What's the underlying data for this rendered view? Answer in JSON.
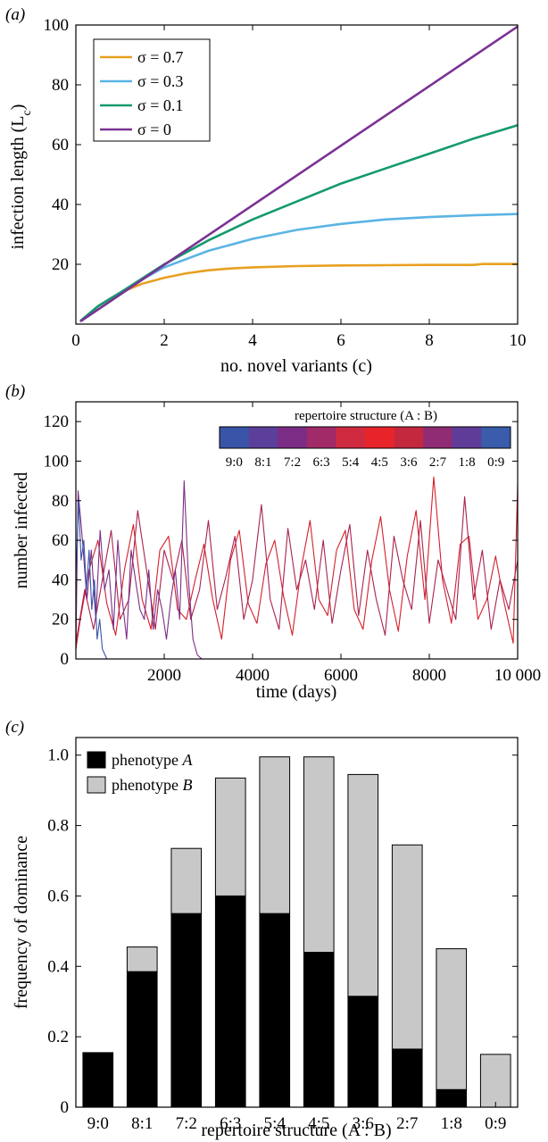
{
  "chart_data": [
    {
      "panel_label": "(a)",
      "type": "line",
      "xlabel": "no. novel variants (c)",
      "ylabel": "infection length (L",
      "ylabel_sub": "c",
      "xlim": [
        0,
        10
      ],
      "ylim": [
        0,
        100
      ],
      "xticks": [
        0,
        2,
        4,
        6,
        8,
        10
      ],
      "yticks": [
        20,
        40,
        60,
        80,
        100
      ],
      "legend_position": "top-left",
      "series": [
        {
          "name": "σ = 0.7",
          "color": "#e8a020",
          "x": [
            0.1,
            0.5,
            1,
            1.5,
            2,
            2.5,
            3,
            3.5,
            4,
            5,
            6,
            7,
            8,
            9,
            9.2,
            10
          ],
          "y": [
            1,
            6,
            10.5,
            13.5,
            15.5,
            17,
            18,
            18.6,
            19,
            19.4,
            19.6,
            19.7,
            19.8,
            19.8,
            20.1,
            20.1
          ]
        },
        {
          "name": "σ = 0.3",
          "color": "#5ab4e5",
          "x": [
            0.1,
            0.5,
            1,
            1.5,
            2,
            3,
            4,
            5,
            6,
            7,
            8,
            9,
            10
          ],
          "y": [
            1,
            6,
            10.5,
            15,
            19,
            24.5,
            28.5,
            31.5,
            33.5,
            35,
            35.8,
            36.4,
            36.8
          ]
        },
        {
          "name": "σ = 0.1",
          "color": "#139a6e",
          "x": [
            0.1,
            0.5,
            1,
            2,
            3,
            4,
            5,
            6,
            7,
            8,
            9,
            10
          ],
          "y": [
            1,
            6,
            10.5,
            20,
            28,
            35,
            41,
            47,
            52,
            57,
            62,
            66.5
          ]
        },
        {
          "name": "σ = 0",
          "color": "#7b3294",
          "x": [
            0.1,
            10
          ],
          "y": [
            0.9,
            99.5
          ]
        }
      ]
    },
    {
      "panel_label": "(b)",
      "type": "line",
      "xlabel": "time (days)",
      "ylabel": "number infected",
      "xlim": [
        0,
        10000
      ],
      "ylim": [
        0,
        130
      ],
      "xticks": [
        2000,
        4000,
        6000,
        8000,
        10000
      ],
      "xtick_labels": [
        "2000",
        "4000",
        "6000",
        "8000",
        "10 000"
      ],
      "yticks": [
        0,
        20,
        40,
        60,
        80,
        100,
        120
      ],
      "colorbar": {
        "title": "repertoire structure (A : B)",
        "labels": [
          "9:0",
          "8:1",
          "7:2",
          "6:3",
          "5:4",
          "4:5",
          "3:6",
          "2:7",
          "1:8",
          "0:9"
        ],
        "colors": [
          "#3a55a8",
          "#5b3f9a",
          "#7b2d86",
          "#a12a68",
          "#cf2a3f",
          "#e8242b",
          "#c4283f",
          "#8f2c74",
          "#5f3c98",
          "#3a5cab"
        ]
      },
      "series": [
        {
          "name": "5:4",
          "color": "#d4202a",
          "x": [
            0,
            100,
            300,
            500,
            700,
            900,
            1100,
            1300,
            1500,
            1700,
            1900,
            2100,
            2300,
            2500,
            2700,
            2900,
            3100,
            3300,
            3500,
            3700,
            3900,
            4100,
            4300,
            4500,
            4700,
            4900,
            5100,
            5300,
            5500,
            5700,
            5900,
            6100,
            6300,
            6500,
            6700,
            6900,
            7100,
            7300,
            7500,
            7700,
            7900,
            8100,
            8300,
            8500,
            8700,
            8900,
            9100,
            9300,
            9500,
            9700,
            9900,
            10000
          ],
          "y": [
            5,
            20,
            45,
            60,
            28,
            12,
            45,
            68,
            30,
            15,
            55,
            62,
            25,
            20,
            40,
            58,
            30,
            10,
            50,
            65,
            28,
            18,
            48,
            60,
            32,
            12,
            46,
            70,
            30,
            22,
            55,
            65,
            25,
            15,
            50,
            72,
            35,
            14,
            52,
            75,
            30,
            92,
            40,
            18,
            58,
            62,
            20,
            30,
            52,
            28,
            8,
            88
          ]
        },
        {
          "name": "4:5",
          "color": "#a8234e",
          "x": [
            0,
            200,
            400,
            600,
            800,
            1000,
            1200,
            1400,
            1600,
            1800,
            2000,
            2200,
            2400,
            2600,
            2800,
            3000,
            3200,
            3400,
            3600,
            3800,
            4000,
            4200,
            4400,
            4600,
            4800,
            5000,
            5200,
            5400,
            5600,
            5800,
            6000,
            6200,
            6400,
            6600,
            6800,
            7000,
            7200,
            7400,
            7600,
            7800,
            8000,
            8200,
            8400,
            8600,
            8800,
            9000,
            9200,
            9400,
            9600,
            9800,
            10000
          ],
          "y": [
            8,
            35,
            15,
            40,
            65,
            20,
            30,
            75,
            45,
            15,
            55,
            40,
            60,
            20,
            35,
            70,
            25,
            42,
            62,
            20,
            40,
            78,
            30,
            15,
            66,
            35,
            50,
            25,
            60,
            18,
            45,
            68,
            22,
            55,
            30,
            12,
            62,
            40,
            25,
            70,
            18,
            50,
            35,
            20,
            82,
            30,
            55,
            15,
            40,
            25,
            50
          ]
        },
        {
          "name": "6:3",
          "color": "#7b2d86",
          "x": [
            0,
            50,
            150,
            250,
            350,
            450,
            550,
            650,
            750,
            850,
            950,
            1050,
            1150,
            1250,
            1350,
            1450,
            1550,
            1650,
            1750,
            1850,
            1950,
            2050,
            2150,
            2250,
            2350,
            2450,
            2550,
            2650,
            2750,
            2850,
            10000
          ],
          "y": [
            5,
            85,
            60,
            30,
            55,
            20,
            65,
            35,
            45,
            15,
            60,
            30,
            10,
            55,
            40,
            25,
            20,
            45,
            15,
            35,
            25,
            10,
            30,
            45,
            20,
            90,
            40,
            10,
            2,
            0,
            0
          ]
        },
        {
          "name": "8:1",
          "color": "#3a55a8",
          "x": [
            0,
            60,
            120,
            180,
            240,
            300,
            360,
            420,
            480,
            540,
            600,
            700,
            10000
          ],
          "y": [
            40,
            80,
            50,
            60,
            35,
            55,
            25,
            40,
            10,
            20,
            5,
            0,
            0
          ]
        }
      ]
    },
    {
      "panel_label": "(c)",
      "type": "bar",
      "xlabel": "repertoire structure (A : B)",
      "ylabel": "frequency of dominance",
      "categories": [
        "9:0",
        "8:1",
        "7:2",
        "6:3",
        "5:4",
        "4:5",
        "3:6",
        "2:7",
        "1:8",
        "0:9"
      ],
      "ylim": [
        0,
        1.05
      ],
      "yticks": [
        0,
        0.2,
        0.4,
        0.6,
        0.8,
        1.0
      ],
      "ytick_labels": [
        "0",
        "0.2",
        "0.4",
        "0.6",
        "0.8",
        "1.0"
      ],
      "legend_position": "top-left",
      "series": [
        {
          "name": "phenotype A",
          "color": "#000000",
          "values": [
            0.155,
            0.385,
            0.55,
            0.6,
            0.55,
            0.44,
            0.315,
            0.165,
            0.05,
            0
          ]
        },
        {
          "name": "phenotype B",
          "color": "#c8c8c8",
          "values": [
            0,
            0.07,
            0.185,
            0.335,
            0.445,
            0.555,
            0.63,
            0.58,
            0.4,
            0.15
          ]
        }
      ]
    }
  ]
}
